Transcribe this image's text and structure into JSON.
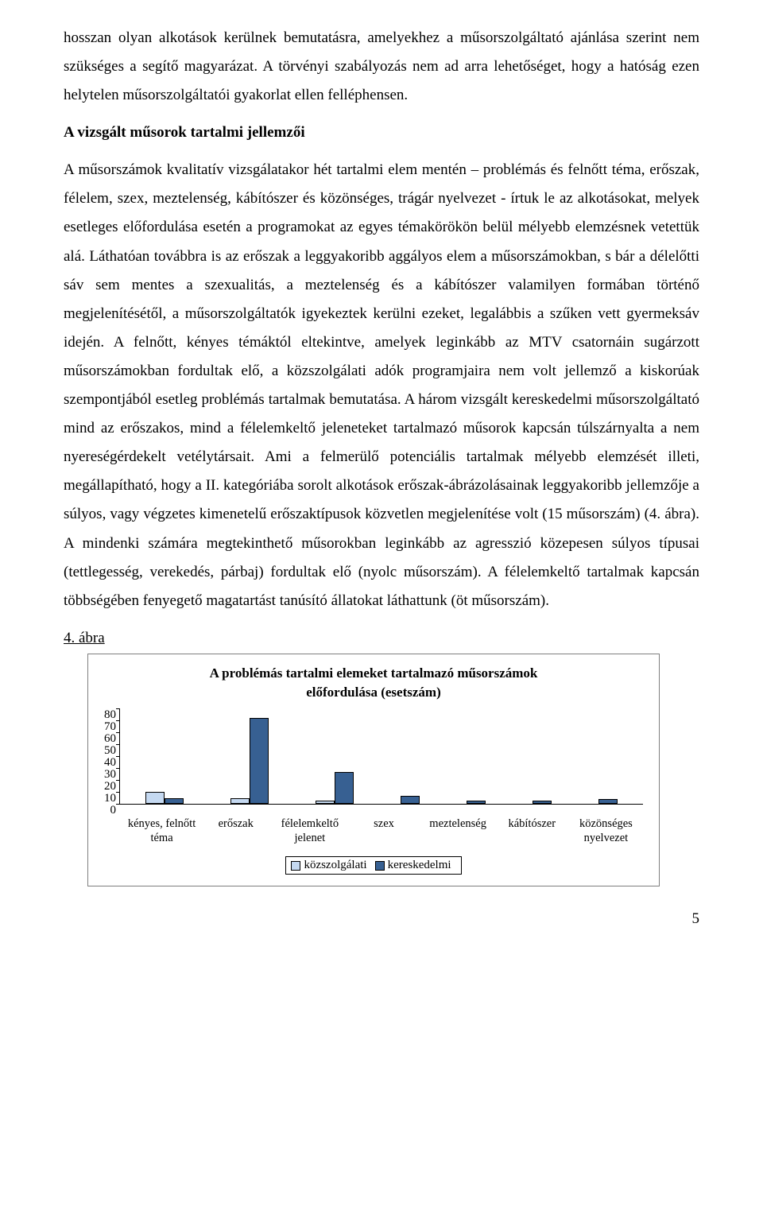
{
  "para1": "hosszan olyan alkotások kerülnek bemutatásra, amelyekhez a műsorszolgáltató ajánlása szerint nem szükséges a segítő magyarázat. A törvényi szabályozás nem ad arra lehetőséget, hogy a hatóság ezen helytelen műsorszolgáltatói gyakorlat ellen felléphensen.",
  "heading": "A vizsgált műsorok tartalmi jellemzői",
  "para2": "A műsorszámok kvalitatív vizsgálatakor hét tartalmi elem mentén – problémás és felnőtt téma, erőszak, félelem, szex, meztelenség, kábítószer és közönséges, trágár nyelvezet - írtuk le az alkotásokat, melyek esetleges előfordulása esetén a programokat az egyes témakörökön belül mélyebb elemzésnek vetettük alá. Láthatóan továbbra is az erőszak a leggyakoribb aggályos elem a műsorszámokban, s bár a délelőtti sáv sem mentes a szexualitás, a meztelenség és a kábítószer valamilyen formában történő megjelenítésétől, a műsorszolgáltatók igyekeztek kerülni ezeket, legalábbis a szűken vett gyermeksáv idején. A felnőtt, kényes témáktól eltekintve, amelyek leginkább az MTV csatornáin sugárzott műsorszámokban fordultak elő, a közszolgálati adók programjaira nem volt jellemző a kiskorúak szempontjából esetleg problémás tartalmak bemutatása. A három vizsgált kereskedelmi műsorszolgáltató mind az erőszakos, mind a félelemkeltő jeleneteket tartalmazó műsorok kapcsán túlszárnyalta a nem nyereségérdekelt vetélytársait. Ami a felmerülő potenciális tartalmak mélyebb elemzését illeti, megállapítható, hogy a II. kategóriába sorolt alkotások erőszak-ábrázolásainak leggyakoribb jellemzője a súlyos, vagy végzetes kimenetelű erőszaktípusok közvetlen megjelenítése volt (15 műsorszám) (4. ábra). A mindenki számára megtekinthető műsorokban leginkább az agresszió közepesen súlyos típusai (tettlegesség, verekedés, párbaj) fordultak elő (nyolc műsorszám). A félelemkeltő tartalmak kapcsán többségében fenyegető magatartást tanúsító állatokat láthattunk (öt műsorszám).",
  "fig_label": "4. ábra",
  "chart": {
    "type": "bar",
    "title_line1": "A problémás tartalmi elemeket tartalmazó műsorszámok",
    "title_line2": "előfordulása (esetszám)",
    "categories": [
      "kényes, felnőtt téma",
      "erőszak",
      "félelemkeltő jelenet",
      "szex",
      "meztelenség",
      "kábítószer",
      "közönséges nyelvezet"
    ],
    "series": [
      {
        "name": "közszolgálati",
        "color": "#c5d9f1",
        "values": [
          10,
          5,
          3,
          0,
          0,
          0,
          0
        ]
      },
      {
        "name": "kereskedelmi",
        "color": "#376092",
        "values": [
          5,
          72,
          27,
          7,
          3,
          3,
          4
        ]
      }
    ],
    "y_ticks": [
      0,
      10,
      20,
      30,
      40,
      50,
      60,
      70,
      80
    ],
    "ymax": 80,
    "background_color": "#ffffff",
    "border_color": "#7f7f7f",
    "bar_border_color": "#000000",
    "title_fontsize": 17,
    "axis_fontsize": 15
  },
  "page_number": "5"
}
